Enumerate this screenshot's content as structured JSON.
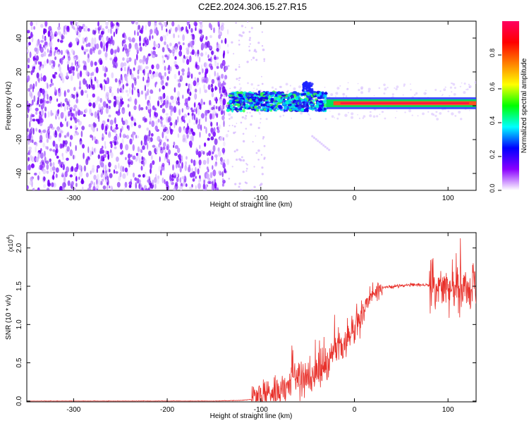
{
  "title": "C2E2.2024.306.15.27.R15",
  "chart_data": [
    {
      "type": "heatmap",
      "xlabel": "Height of straight line (km)",
      "ylabel": "Frequency (Hz)",
      "xlim": [
        -350,
        130
      ],
      "ylim": [
        -50,
        50
      ],
      "xticks": [
        -300,
        -200,
        -100,
        0,
        100
      ],
      "yticks": [
        -40,
        -20,
        0,
        20,
        40
      ],
      "colorbar": {
        "label": "Normalized spectral amplitude",
        "range": [
          0,
          1
        ],
        "ticks": [
          "0.0",
          "0.2",
          "0.4",
          "0.6",
          "0.8"
        ],
        "colors": [
          "#ffffff",
          "#8a00ff",
          "#0000ff",
          "#00ffff",
          "#00ff00",
          "#ffff00",
          "#ff8000",
          "#ff0000",
          "#ff0060"
        ]
      },
      "regions": [
        {
          "x": [
            -350,
            -135
          ],
          "freq": [
            -50,
            50
          ],
          "amplitude": 0.1
        },
        {
          "x": [
            -135,
            -30
          ],
          "freq": [
            -3,
            8
          ],
          "amplitude": 0.35
        },
        {
          "x": [
            -55,
            -45
          ],
          "freq": [
            8,
            14
          ],
          "amplitude": 0.3
        },
        {
          "x": [
            -30,
            130
          ],
          "freq": [
            0,
            3
          ],
          "amplitude": 0.95
        }
      ]
    },
    {
      "type": "line",
      "xlabel": "Height of straight line (km)",
      "ylabel": "SNR (10 * v/v)",
      "multiplier": "(x10",
      "multiplier_exp": "4",
      "multiplier_close": ")",
      "xlim": [
        -350,
        130
      ],
      "ylim": [
        -0.01,
        2.2
      ],
      "xticks": [
        -300,
        -200,
        -100,
        0,
        100
      ],
      "yticks": [
        "0.0",
        "0.5",
        "1.0",
        "1.5",
        "2.0"
      ],
      "series": [
        {
          "color": "#e8302a",
          "x": [
            -350,
            -300,
            -200,
            -150,
            -120,
            -105,
            -100,
            -90,
            -80,
            -70,
            -60,
            -50,
            -40,
            -30,
            -20,
            -10,
            0,
            10,
            15,
            20,
            30,
            50,
            70,
            80,
            90,
            100,
            110,
            120,
            130
          ],
          "y": [
            0.0,
            0.0,
            0.0,
            0.0,
            0.01,
            0.03,
            0.07,
            0.12,
            0.16,
            0.2,
            0.27,
            0.3,
            0.38,
            0.5,
            0.65,
            0.75,
            0.95,
            1.15,
            1.35,
            1.42,
            1.48,
            1.51,
            1.52,
            1.51,
            1.5,
            1.47,
            1.46,
            1.45,
            1.44
          ]
        }
      ]
    }
  ]
}
